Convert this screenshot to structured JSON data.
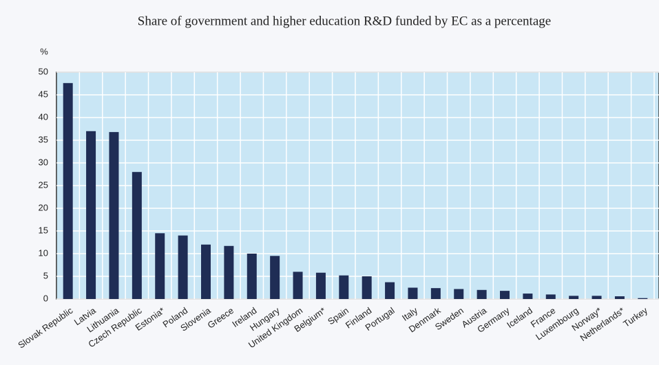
{
  "chart_data": {
    "type": "bar",
    "title": "Share of government and higher education R&D funded by EC as a percentage",
    "y_label": "%",
    "categories": [
      "Slovak Republic",
      "Latvia",
      "Lithuania",
      "Czech Republic",
      "Estonia*",
      "Poland",
      "Slovenia",
      "Greece",
      "Ireland",
      "Hungary",
      "United Kingdom",
      "Belgium*",
      "Spain",
      "Finland",
      "Portugal",
      "Italy",
      "Denmark",
      "Sweden",
      "Austria",
      "Germany",
      "Iceland",
      "France",
      "Luxembourg",
      "Norway*",
      "Netherlands*",
      "Turkey"
    ],
    "values": [
      47.6,
      37,
      36.8,
      28,
      14.5,
      14,
      12,
      11.7,
      10,
      9.5,
      6,
      5.8,
      5.2,
      5,
      3.7,
      2.5,
      2.4,
      2.2,
      2,
      1.8,
      1.2,
      1,
      0.7,
      0.7,
      0.6,
      0.2
    ],
    "color": "#1f2d55",
    "ylim": [
      0,
      50
    ],
    "yticks": [
      0,
      5,
      10,
      15,
      20,
      25,
      30,
      35,
      40,
      45,
      50
    ],
    "grid": true
  }
}
